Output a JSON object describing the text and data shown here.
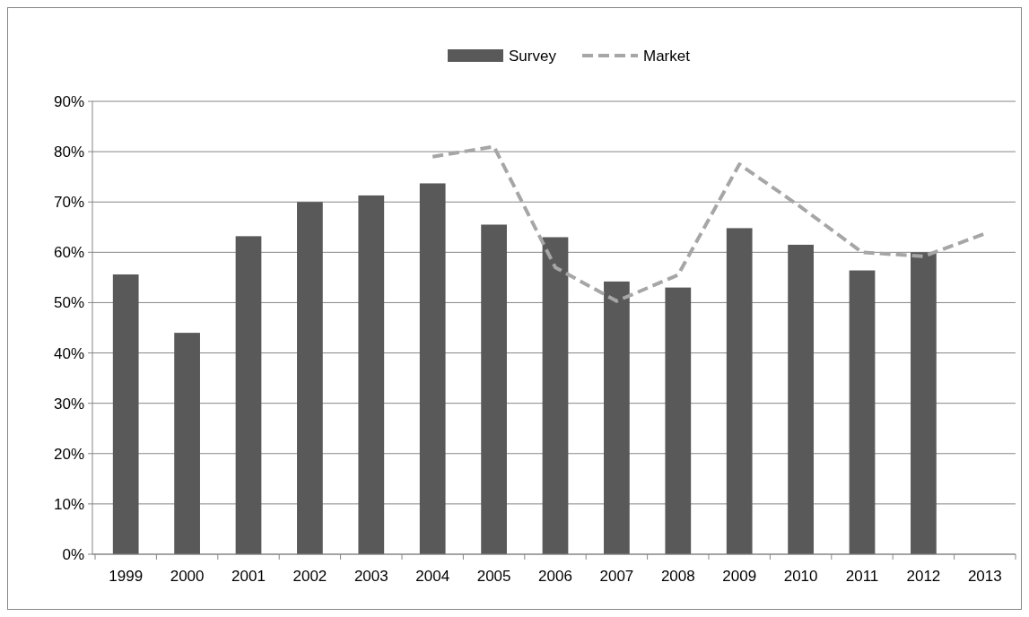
{
  "chart_data": {
    "type": "bar",
    "categories": [
      "1999",
      "2000",
      "2001",
      "2002",
      "2003",
      "2004",
      "2005",
      "2006",
      "2007",
      "2008",
      "2009",
      "2010",
      "2011",
      "2012",
      "2013"
    ],
    "series": [
      {
        "name": "Survey",
        "color": "#595959",
        "values": [
          55.6,
          44,
          63.2,
          70,
          71.3,
          73.7,
          65.5,
          63,
          54.2,
          53,
          64.8,
          61.5,
          56.4,
          60,
          null
        ]
      },
      {
        "name": "Market",
        "type": "line",
        "color": "#a6a6a6",
        "line_style": "dashed",
        "values": [
          null,
          null,
          null,
          null,
          null,
          79,
          81,
          57,
          50.3,
          55.5,
          77.5,
          69,
          60,
          59.2,
          63.7
        ]
      }
    ],
    "ylim": [
      0,
      90
    ],
    "yticks": [
      {
        "value": 0,
        "label": "0%"
      },
      {
        "value": 10,
        "label": "10%"
      },
      {
        "value": 20,
        "label": "20%"
      },
      {
        "value": 30,
        "label": "30%"
      },
      {
        "value": 40,
        "label": "40%"
      },
      {
        "value": 50,
        "label": "50%"
      },
      {
        "value": 60,
        "label": "60%"
      },
      {
        "value": 70,
        "label": "70%"
      },
      {
        "value": 80,
        "label": "80%"
      },
      {
        "value": 90,
        "label": "90%"
      }
    ],
    "grid": "y",
    "legend": "top"
  }
}
